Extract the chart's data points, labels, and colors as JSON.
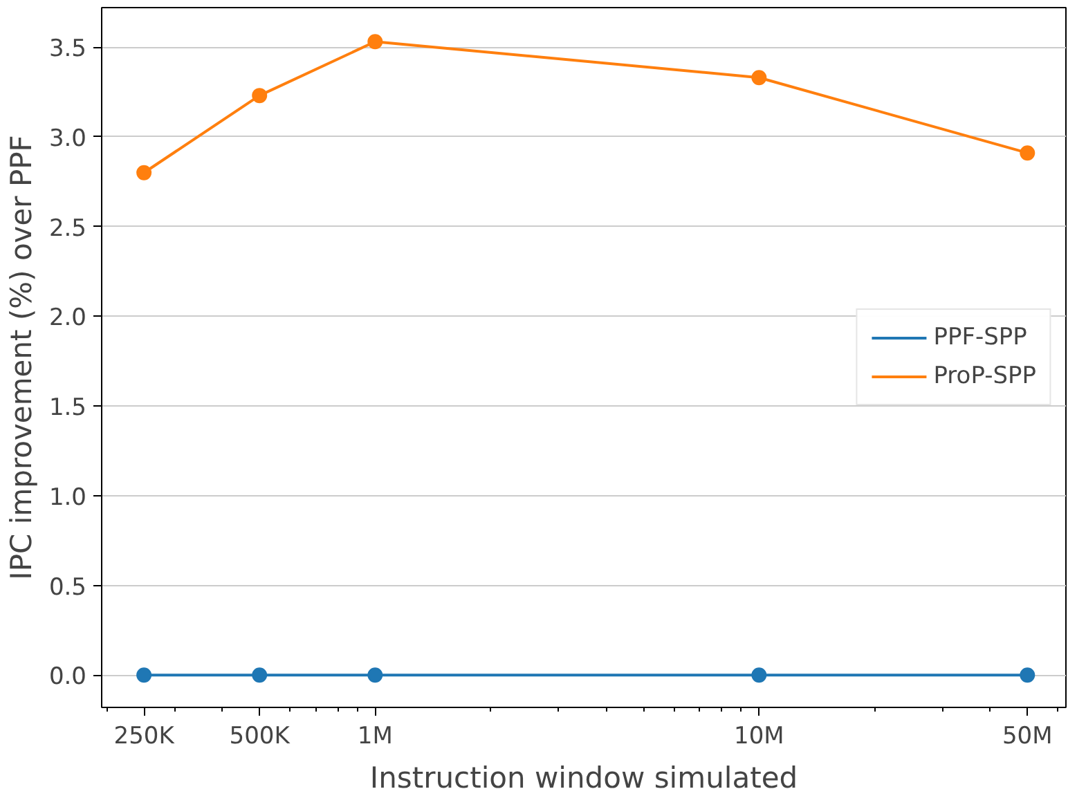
{
  "chart_data": {
    "type": "line",
    "xlabel": "Instruction window simulated",
    "ylabel": "IPC improvement (%) over PPF",
    "x": [
      250000,
      500000,
      1000000,
      10000000,
      50000000
    ],
    "series": [
      {
        "name": "PPF-SPP",
        "color": "#1f77b4",
        "values": [
          0,
          0,
          0,
          0,
          0
        ]
      },
      {
        "name": "ProP-SPP",
        "color": "#ff7f0e",
        "values": [
          2.8,
          3.23,
          3.53,
          3.33,
          2.91
        ]
      }
    ],
    "log": "x",
    "xlim": [
      194000,
      63000000
    ],
    "xticks": [
      {
        "value": 250000,
        "label": "250K"
      },
      {
        "value": 500000,
        "label": "500K"
      },
      {
        "value": 1000000,
        "label": "1M"
      },
      {
        "value": 10000000,
        "label": "10M"
      },
      {
        "value": 50000000,
        "label": "50M"
      }
    ],
    "ylim": [
      -0.18,
      3.72
    ],
    "yticks": [
      {
        "value": 0,
        "label": "0.0"
      },
      {
        "value": 0.5,
        "label": "0.5"
      },
      {
        "value": 1,
        "label": "1.0"
      },
      {
        "value": 1.5,
        "label": "1.5"
      },
      {
        "value": 2,
        "label": "2.0"
      },
      {
        "value": 2.5,
        "label": "2.5"
      },
      {
        "value": 3,
        "label": "3.0"
      },
      {
        "value": 3.5,
        "label": "3.5"
      }
    ],
    "grid": "y",
    "legend": "right",
    "marker": "circle",
    "line_style": "solid"
  }
}
